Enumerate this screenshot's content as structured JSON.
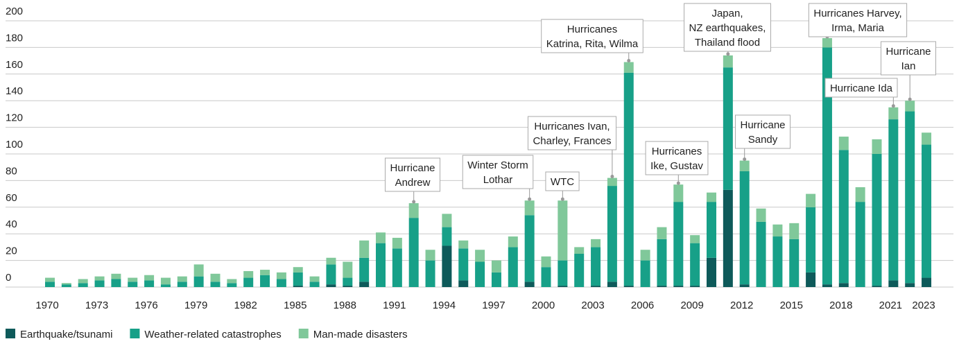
{
  "chart_data": {
    "type": "stacked-bar",
    "categories": [
      "1970",
      null,
      null,
      "1973",
      null,
      null,
      "1976",
      null,
      null,
      "1979",
      null,
      null,
      "1982",
      null,
      null,
      "1985",
      null,
      null,
      "1988",
      null,
      null,
      "1991",
      null,
      null,
      "1994",
      null,
      null,
      "1997",
      null,
      null,
      "2000",
      null,
      null,
      "2003",
      null,
      null,
      "2006",
      null,
      null,
      "2009",
      null,
      null,
      "2012",
      null,
      null,
      "2015",
      null,
      null,
      "2018",
      null,
      null,
      "2021",
      null,
      "2023"
    ],
    "series": [
      {
        "name": "Earthquake/tsunami",
        "color": "#0e5a5a",
        "values": [
          0,
          0,
          0,
          0,
          0,
          0,
          0,
          0,
          0,
          0,
          0,
          0,
          0,
          0,
          0,
          1,
          0,
          2,
          1,
          4,
          0,
          0,
          0,
          0,
          31,
          5,
          0,
          0,
          0,
          4,
          0,
          1,
          0,
          1,
          4,
          1,
          0,
          1,
          1,
          1,
          22,
          73,
          2,
          0,
          0,
          0,
          11,
          2,
          3,
          0,
          1,
          5,
          3,
          7
        ]
      },
      {
        "name": "Weather-related catastrophes",
        "color": "#17a088",
        "values": [
          4,
          2,
          3,
          5,
          6,
          4,
          5,
          2,
          4,
          8,
          4,
          3,
          7,
          9,
          6,
          10,
          4,
          15,
          6,
          18,
          33,
          29,
          52,
          20,
          14,
          24,
          19,
          11,
          30,
          50,
          15,
          19,
          25,
          29,
          72,
          160,
          20,
          35,
          63,
          32,
          42,
          92,
          85,
          49,
          38,
          36,
          49,
          178,
          100,
          64,
          99,
          121,
          129,
          100
        ]
      },
      {
        "name": "Man-made disasters",
        "color": "#80c89a",
        "values": [
          3,
          1,
          3,
          3,
          4,
          3,
          4,
          5,
          4,
          9,
          6,
          3,
          5,
          4,
          5,
          4,
          4,
          5,
          12,
          13,
          8,
          8,
          11,
          8,
          10,
          6,
          9,
          9,
          8,
          11,
          8,
          45,
          5,
          6,
          6,
          8,
          8,
          9,
          13,
          6,
          7,
          9,
          8,
          10,
          9,
          12,
          10,
          7,
          10,
          11,
          11,
          9,
          8,
          9
        ]
      }
    ],
    "ylim": [
      0,
      200
    ],
    "yticks": [
      0,
      20,
      40,
      60,
      80,
      100,
      120,
      140,
      160,
      180,
      200
    ],
    "grid": true,
    "annotations": [
      {
        "lines": [
          "Hurricane",
          "Andrew"
        ]
      },
      {
        "lines": [
          "Winter Storm",
          "Lothar"
        ]
      },
      {
        "lines": [
          "WTC"
        ]
      },
      {
        "lines": [
          "Hurricanes Ivan,",
          "Charley, Frances"
        ]
      },
      {
        "lines": [
          "Hurricanes",
          "Katrina, Rita, Wilma"
        ]
      },
      {
        "lines": [
          "Hurricanes",
          "Ike, Gustav"
        ]
      },
      {
        "lines": [
          "Japan,",
          "NZ earthquakes,",
          "Thailand flood"
        ]
      },
      {
        "lines": [
          "Hurricane",
          "Sandy"
        ]
      },
      {
        "lines": [
          "Hurricanes Harvey,",
          "Irma, Maria"
        ]
      },
      {
        "lines": [
          "Hurricane Ida"
        ]
      },
      {
        "lines": [
          "Hurricane",
          "Ian"
        ]
      }
    ]
  }
}
